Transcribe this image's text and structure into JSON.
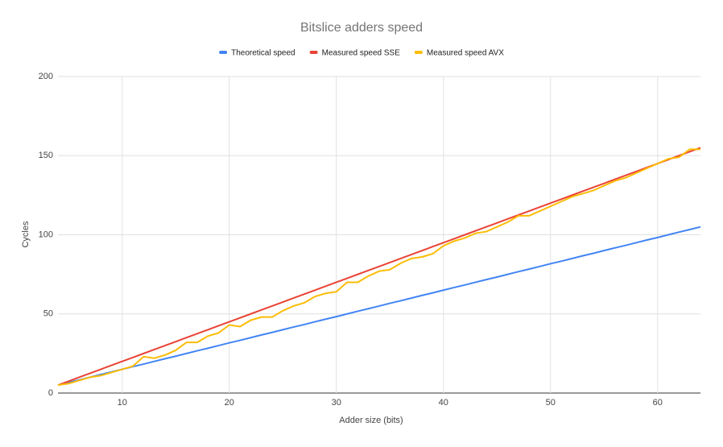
{
  "chart_data": {
    "type": "line",
    "title": "Bitslice adders speed",
    "x_label": "Adder size (bits)",
    "y_label": "Cycles",
    "x": [
      4,
      5,
      6,
      7,
      8,
      9,
      10,
      11,
      12,
      13,
      14,
      15,
      16,
      17,
      18,
      19,
      20,
      21,
      22,
      23,
      24,
      25,
      26,
      27,
      28,
      29,
      30,
      31,
      32,
      33,
      34,
      35,
      36,
      37,
      38,
      39,
      40,
      41,
      42,
      43,
      44,
      45,
      46,
      47,
      48,
      49,
      50,
      51,
      52,
      53,
      54,
      55,
      56,
      57,
      58,
      59,
      60,
      61,
      62,
      63,
      64
    ],
    "series": [
      {
        "name": "Theoretical speed",
        "color": "#4285f4",
        "values": [
          5,
          6.7,
          8.3,
          10,
          11.7,
          13.3,
          15,
          16.7,
          18.3,
          20,
          21.7,
          23.3,
          25,
          26.7,
          28.3,
          30,
          31.7,
          33.3,
          35,
          36.7,
          38.3,
          40,
          41.7,
          43.3,
          45,
          46.7,
          48.3,
          50,
          51.7,
          53.3,
          55,
          56.7,
          58.3,
          60,
          61.7,
          63.3,
          65,
          66.7,
          68.3,
          70,
          71.7,
          73.3,
          75,
          76.7,
          78.3,
          80,
          81.7,
          83.3,
          85,
          86.7,
          88.3,
          90,
          91.7,
          93.3,
          95,
          96.7,
          98.3,
          100,
          101.7,
          103.3,
          105
        ]
      },
      {
        "name": "Measured speed SSE",
        "color": "#ea4335",
        "values": [
          5,
          7.5,
          10,
          12.5,
          15,
          17.5,
          20,
          22.5,
          25,
          27.5,
          30,
          32.5,
          35,
          37.5,
          40,
          42.5,
          45,
          47.5,
          50,
          52.5,
          55,
          57.5,
          60,
          62.5,
          65,
          67.5,
          70,
          72.5,
          75,
          77.5,
          80,
          82.5,
          85,
          87.5,
          90,
          92.5,
          95,
          97.5,
          100,
          102.5,
          105,
          107.5,
          110,
          112.5,
          115,
          117.5,
          120,
          122.5,
          125,
          127.5,
          130,
          132.5,
          135,
          137.5,
          140,
          142.5,
          145,
          147.5,
          150,
          152.5,
          155
        ]
      },
      {
        "name": "Measured speed AVX",
        "color": "#fbbc04",
        "values": [
          5,
          6,
          8,
          10,
          11,
          13,
          15,
          17,
          23,
          22,
          24,
          27,
          32,
          32,
          36,
          38,
          43,
          42,
          46,
          48,
          48,
          52,
          55,
          57,
          61,
          63,
          64,
          70,
          70,
          74,
          77,
          78,
          82,
          85,
          86,
          88,
          93,
          96,
          98,
          101,
          102,
          105,
          108,
          112,
          112,
          115,
          118,
          121,
          124,
          126,
          128,
          131,
          134,
          136,
          139,
          142,
          145,
          148,
          149,
          154,
          154
        ]
      }
    ],
    "xlim": [
      4,
      64
    ],
    "xticks": [
      10,
      20,
      30,
      40,
      50,
      60
    ],
    "ylim": [
      0,
      200
    ],
    "yticks": [
      0,
      50,
      100,
      150,
      200
    ],
    "grid": true,
    "legend": "top"
  }
}
